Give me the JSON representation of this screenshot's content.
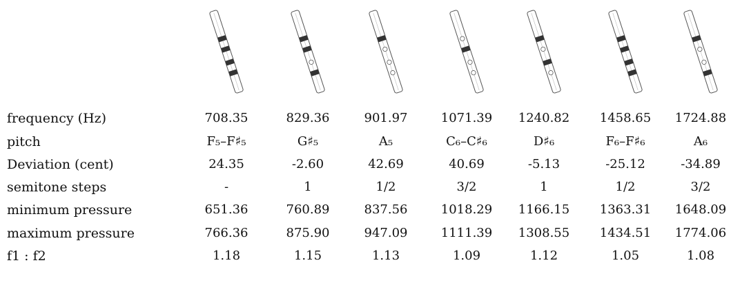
{
  "rows": [
    {
      "label": "frequency (Hz)",
      "values": [
        "708.35",
        "829.36",
        "901.97",
        "1071.39",
        "1240.82",
        "1458.65",
        "1724.88"
      ]
    },
    {
      "label": "pitch",
      "values": [
        "F₅–F♯₅",
        "G♯₅",
        "A₅",
        "C₆–C♯₆",
        "D♯₆",
        "F₆–F♯₆",
        "A₆"
      ]
    },
    {
      "label": "Deviation (cent)",
      "values": [
        "24.35",
        "-2.60",
        "42.69",
        "40.69",
        "-5.13",
        "-25.12",
        "-34.89"
      ]
    },
    {
      "label": "semitone steps",
      "values": [
        "-",
        "1",
        "1/2",
        "3/2",
        "1",
        "1/2",
        "3/2"
      ]
    },
    {
      "label": "minimum pressure",
      "values": [
        "651.36",
        "760.89",
        "837.56",
        "1018.29",
        "1166.15",
        "1363.31",
        "1648.09"
      ]
    },
    {
      "label": "maximum pressure",
      "values": [
        "766.36",
        "875.90",
        "947.09",
        "1111.39",
        "1308.55",
        "1434.51",
        "1774.06"
      ]
    },
    {
      "label": "f1 : f2",
      "values": [
        "1.18",
        "1.15",
        "1.13",
        "1.09",
        "1.12",
        "1.05",
        "1.08"
      ]
    }
  ],
  "fingerings": [
    {
      "holes": [
        "closed",
        "closed",
        "closed",
        "closed"
      ]
    },
    {
      "holes": [
        "closed",
        "closed",
        "open",
        "closed"
      ]
    },
    {
      "holes": [
        "closed",
        "open",
        "open",
        "open"
      ]
    },
    {
      "holes": [
        "open",
        "closed",
        "open",
        "open"
      ]
    },
    {
      "holes": [
        "closed",
        "open",
        "closed",
        "open"
      ]
    },
    {
      "holes": [
        "closed",
        "closed",
        "closed",
        "closed"
      ]
    },
    {
      "holes": [
        "closed",
        "open",
        "open",
        "closed"
      ]
    }
  ],
  "colors": {
    "flute_outline": "#555555",
    "hole_closed": "#333333",
    "hole_open": "#ffffff"
  }
}
